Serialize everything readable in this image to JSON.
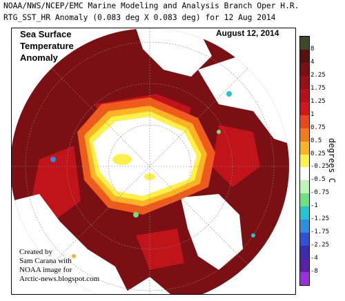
{
  "header": {
    "line1": "NOAA/NWS/NCEP/EMC Marine Modeling and Analysis Branch Oper H.R.",
    "line2": "RTG_SST_HR Anomaly (0.083 deg X 0.083 deg) for 12 Aug 2014"
  },
  "overlay": {
    "title_lines": [
      "Sea Surface",
      "Temperature",
      "Anomaly"
    ],
    "date": "August 12, 2014"
  },
  "credit": {
    "lines": [
      "Created by",
      "Sam Carana with",
      "NOAA image for",
      "Arctic-news.blogspot.com"
    ]
  },
  "colorbar": {
    "unit_label": "degrees C",
    "ticks": [
      "8",
      "4",
      "2.25",
      "1.75",
      "1.25",
      "1",
      "0.75",
      "0.5",
      "0.25",
      "-0.25",
      "-0.5",
      "-0.75",
      "-1",
      "-1.25",
      "-1.75",
      "-2.25",
      "-4",
      "-8"
    ],
    "colors": [
      "#3d4a2a",
      "#5a1010",
      "#7a0f14",
      "#9a0e16",
      "#b8101a",
      "#d6151b",
      "#e8481c",
      "#f47a1e",
      "#fcb424",
      "#fdf048",
      "#ffffff",
      "#bff5b5",
      "#6ee27e",
      "#22c6d2",
      "#2d8de0",
      "#2f50d8",
      "#3a2bb0",
      "#5a1fa8",
      "#9b2fdf"
    ]
  },
  "map_colors": {
    "land": "#ffffff",
    "strong_warm": "#7a0f14",
    "warm": "#c0141a",
    "moderate": "#ef5a1d",
    "mild": "#fcb424",
    "slight": "#fdf048",
    "ice": "#ffffff"
  }
}
